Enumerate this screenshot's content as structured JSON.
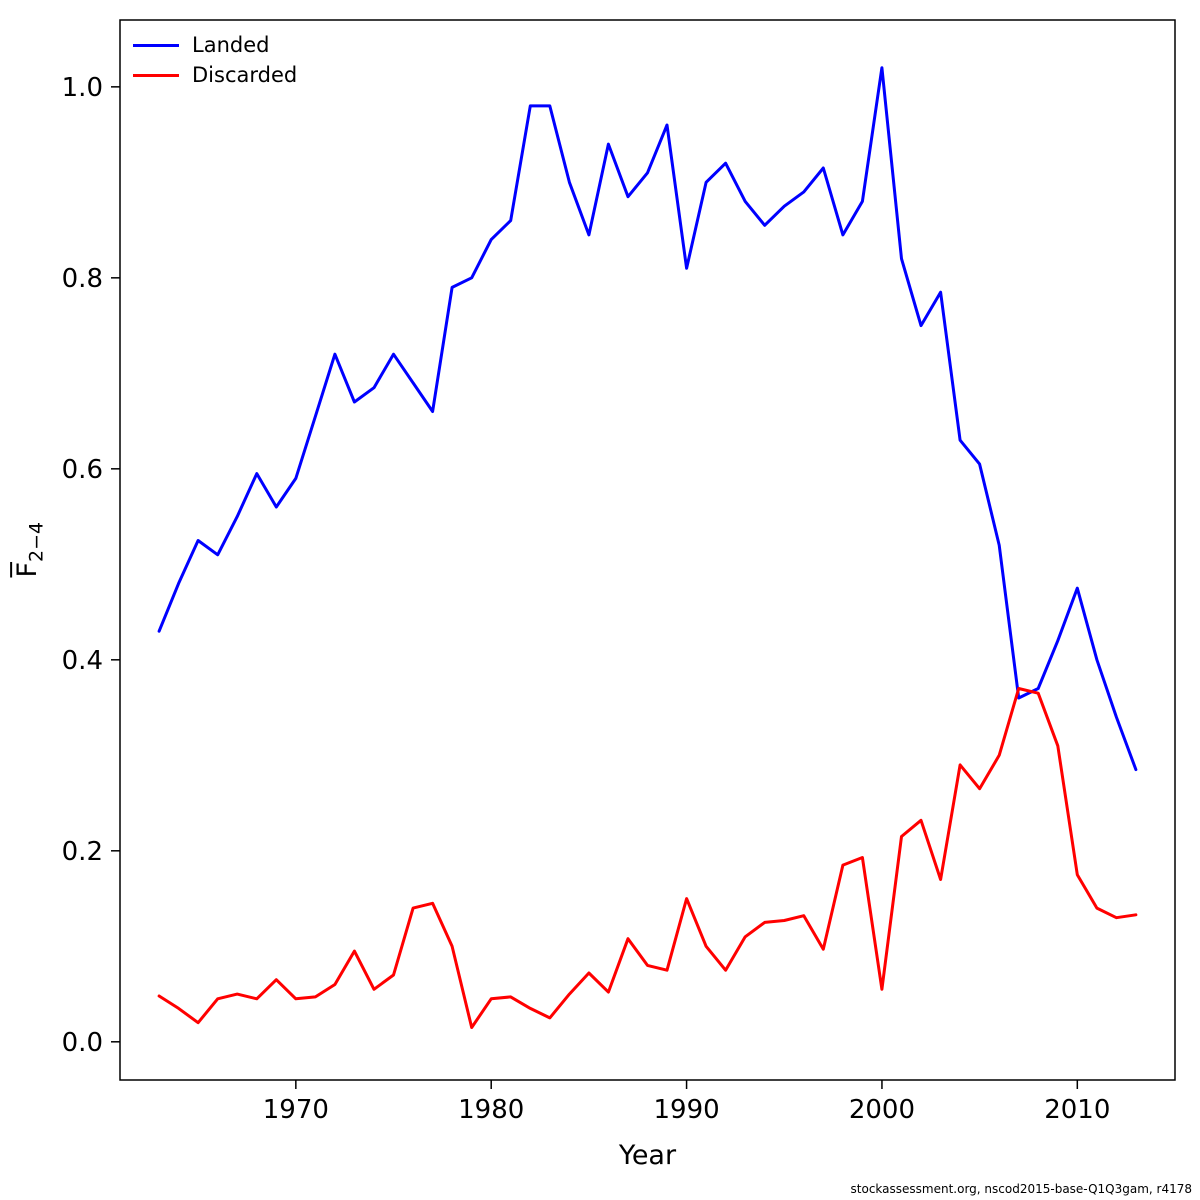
{
  "chart_data": {
    "type": "line",
    "x": [
      1963,
      1964,
      1965,
      1966,
      1967,
      1968,
      1969,
      1970,
      1971,
      1972,
      1973,
      1974,
      1975,
      1976,
      1977,
      1978,
      1979,
      1980,
      1981,
      1982,
      1983,
      1984,
      1985,
      1986,
      1987,
      1988,
      1989,
      1990,
      1991,
      1992,
      1993,
      1994,
      1995,
      1996,
      1997,
      1998,
      1999,
      2000,
      2001,
      2002,
      2003,
      2004,
      2005,
      2006,
      2007,
      2008,
      2009,
      2010,
      2011,
      2012,
      2013
    ],
    "series": [
      {
        "name": "Landed",
        "color": "#0000ff",
        "values": [
          0.43,
          0.48,
          0.525,
          0.51,
          0.55,
          0.595,
          0.56,
          0.59,
          0.655,
          0.72,
          0.67,
          0.685,
          0.72,
          0.69,
          0.66,
          0.79,
          0.8,
          0.84,
          0.86,
          0.98,
          0.98,
          0.9,
          0.845,
          0.94,
          0.885,
          0.91,
          0.96,
          0.81,
          0.9,
          0.92,
          0.88,
          0.855,
          0.875,
          0.89,
          0.915,
          0.845,
          0.88,
          1.02,
          0.82,
          0.75,
          0.785,
          0.63,
          0.605,
          0.52,
          0.36,
          0.37,
          0.42,
          0.475,
          0.4,
          0.34,
          0.285
        ]
      },
      {
        "name": "Discarded",
        "color": "#ff0000",
        "values": [
          0.048,
          0.035,
          0.02,
          0.045,
          0.05,
          0.045,
          0.065,
          0.045,
          0.047,
          0.06,
          0.095,
          0.055,
          0.07,
          0.14,
          0.145,
          0.1,
          0.015,
          0.045,
          0.047,
          0.035,
          0.025,
          0.05,
          0.072,
          0.052,
          0.108,
          0.08,
          0.075,
          0.15,
          0.1,
          0.075,
          0.11,
          0.125,
          0.127,
          0.132,
          0.097,
          0.185,
          0.193,
          0.055,
          0.215,
          0.232,
          0.17,
          0.29,
          0.265,
          0.3,
          0.37,
          0.365,
          0.31,
          0.175,
          0.14,
          0.13,
          0.133
        ]
      }
    ],
    "title": "",
    "xlabel": "Year",
    "ylabel_main": "F",
    "ylabel_sub": "2−4",
    "xlim": [
      1961,
      2015
    ],
    "ylim": [
      -0.04,
      1.07
    ],
    "xticks": [
      1970,
      1980,
      1990,
      2000,
      2010
    ],
    "yticks": [
      "0.0",
      "0.2",
      "0.4",
      "0.6",
      "0.8",
      "1.0"
    ],
    "grid": false,
    "legend": {
      "position": "top-left",
      "entries": [
        {
          "label": "Landed",
          "color": "#0000ff"
        },
        {
          "label": "Discarded",
          "color": "#ff0000"
        }
      ]
    },
    "footer": "stockassessment.org, nscod2015-base-Q1Q3gam, r4178"
  }
}
